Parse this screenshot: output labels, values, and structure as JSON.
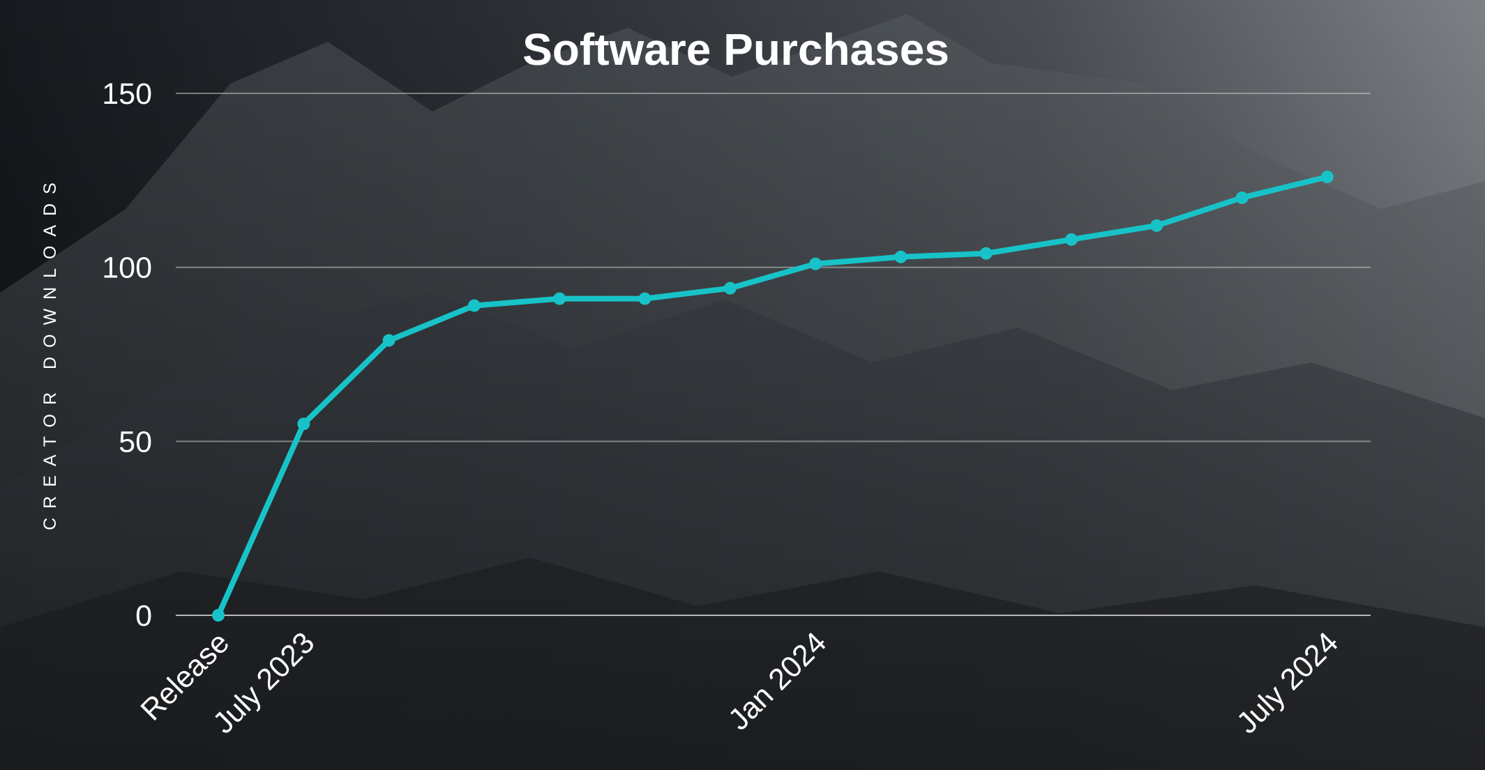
{
  "colors": {
    "line": "#17c3c8",
    "text": "#ffffff",
    "background_dark": "#15181c",
    "background_light": "#7a7e83"
  },
  "chart_data": {
    "type": "line",
    "title": "Software Purchases",
    "xlabel": "",
    "ylabel": "CREATOR DOWNLOADS",
    "ylim": [
      0,
      150
    ],
    "yticks": [
      0,
      50,
      100,
      150
    ],
    "grid": true,
    "legend": "none",
    "x_tick_labels": [
      {
        "index": 0,
        "label": "Release"
      },
      {
        "index": 1,
        "label": "July 2023"
      },
      {
        "index": 7,
        "label": "Jan 2024"
      },
      {
        "index": 13,
        "label": "July 2024"
      }
    ],
    "series": [
      {
        "values": [
          0,
          55,
          79,
          89,
          91,
          91,
          94,
          101,
          103,
          104,
          108,
          112,
          120,
          126
        ]
      }
    ]
  }
}
